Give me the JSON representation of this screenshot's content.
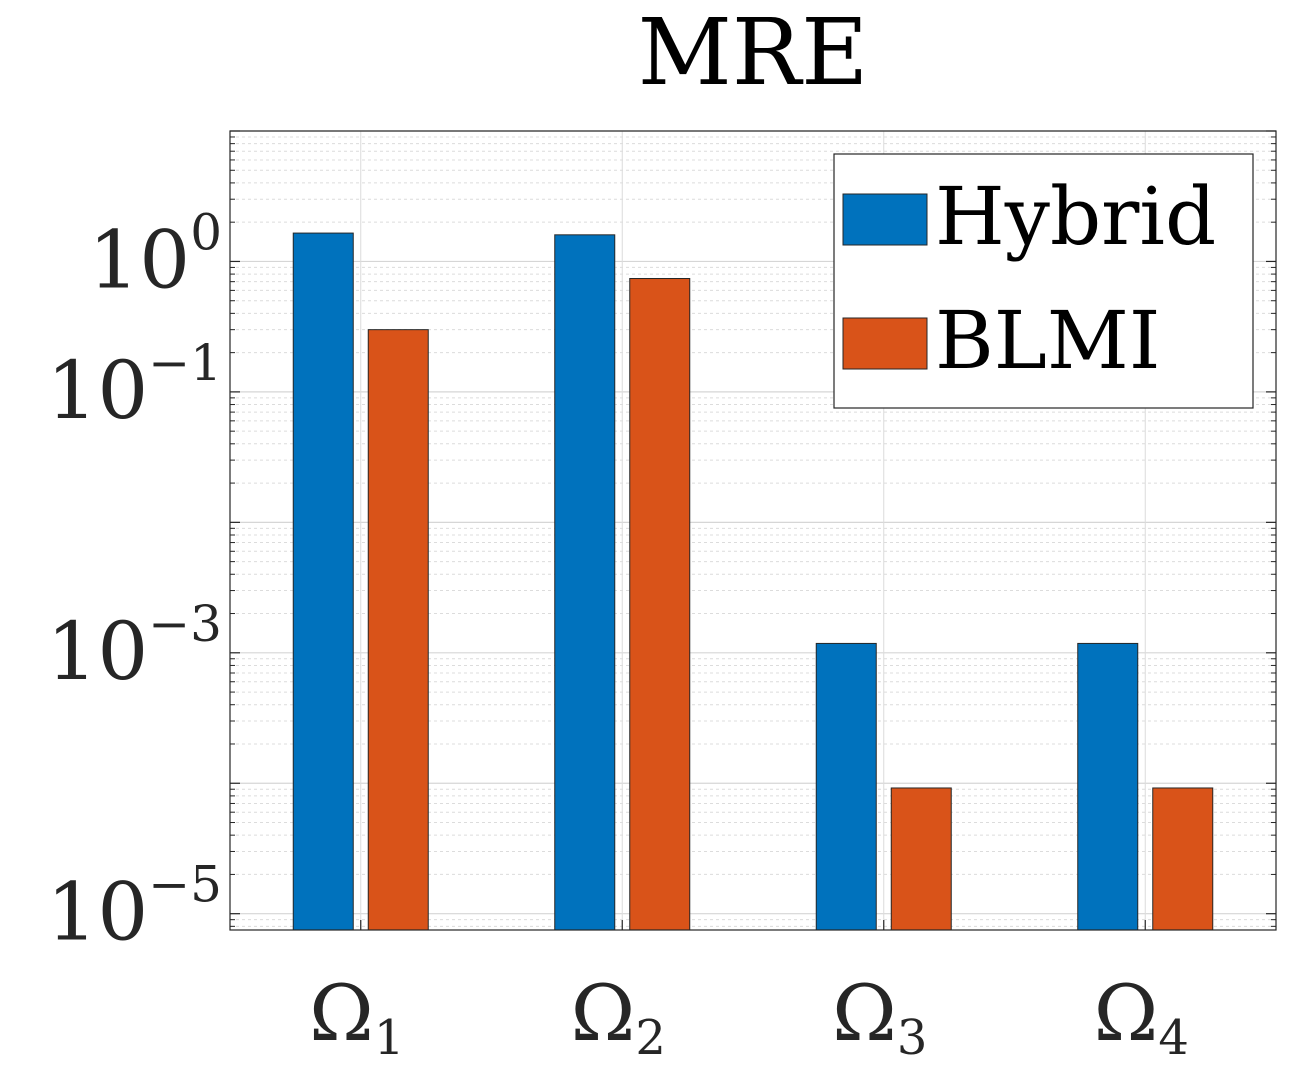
{
  "chart_data": {
    "type": "bar",
    "title": "MRE",
    "xlabel": "",
    "ylabel": "",
    "yscale": "log",
    "ylim": [
      7.5e-06,
      10
    ],
    "categories": [
      {
        "base": "Ω",
        "sub": "1"
      },
      {
        "base": "Ω",
        "sub": "2"
      },
      {
        "base": "Ω",
        "sub": "3"
      },
      {
        "base": "Ω",
        "sub": "4"
      }
    ],
    "series": [
      {
        "name": "Hybrid",
        "color": "#0072BD",
        "values": [
          1.65,
          1.6,
          0.00118,
          0.00118
        ]
      },
      {
        "name": "BLMI",
        "color": "#D95319",
        "values": [
          0.3,
          0.74,
          9.2e-05,
          9.2e-05
        ]
      }
    ],
    "yticks": [
      {
        "value": 1,
        "base": "10",
        "exp": "0"
      },
      {
        "value": 0.1,
        "base": "10",
        "exp": "−1"
      },
      {
        "value": 0.001,
        "base": "10",
        "exp": "−3"
      },
      {
        "value": 1e-05,
        "base": "10",
        "exp": "−5"
      }
    ],
    "grid": true,
    "legend_position": "top-right"
  }
}
